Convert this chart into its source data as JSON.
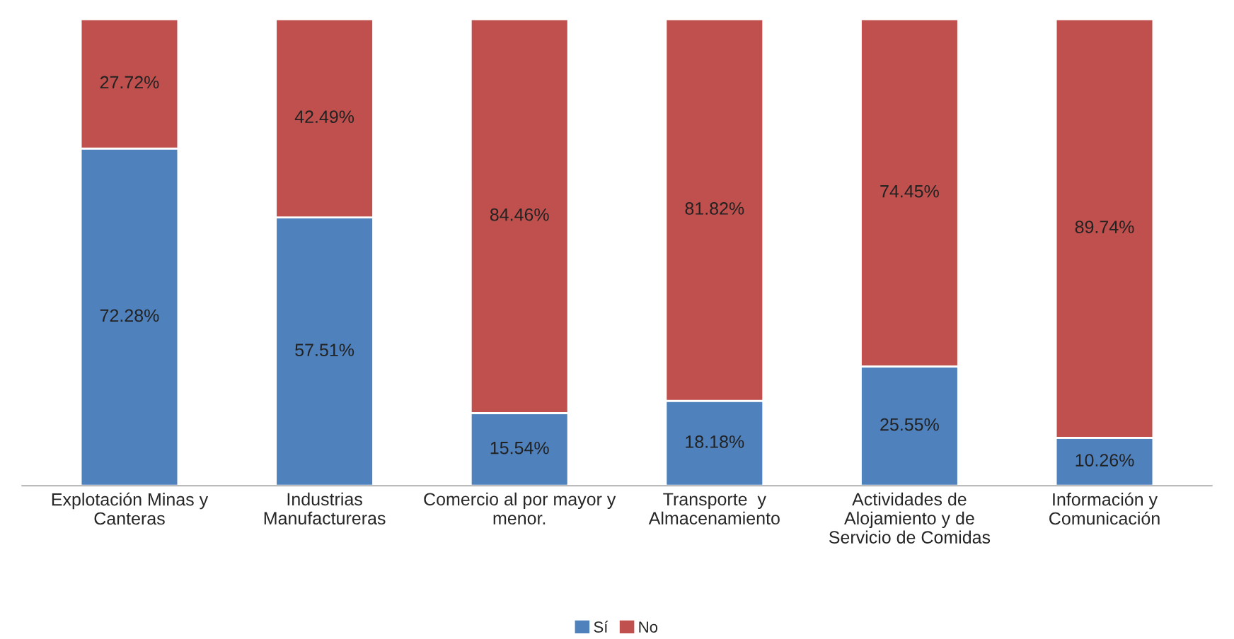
{
  "chart_data": {
    "type": "bar",
    "stacked": true,
    "categories": [
      "Explotación Minas y\nCanteras",
      "Industrias\nManufactureras",
      "Comercio al por mayor y\nmenor.",
      "Transporte  y\nAlmacenamiento",
      "Actividades de\nAlojamiento y de\nServicio de Comidas",
      "Información y\nComunicación"
    ],
    "series": [
      {
        "name": "Sí",
        "color": "#4f81bd",
        "values": [
          72.28,
          57.51,
          15.54,
          18.18,
          25.55,
          10.26
        ],
        "value_labels": [
          "72.28%",
          "57.51%",
          "15.54%",
          "18.18%",
          "25.55%",
          "10.26%"
        ]
      },
      {
        "name": "No",
        "color": "#c0504d",
        "values": [
          27.72,
          42.49,
          84.46,
          81.82,
          74.45,
          89.74
        ],
        "value_labels": [
          "27.72%",
          "42.49%",
          "84.46%",
          "81.82%",
          "74.45%",
          "89.74%"
        ]
      }
    ],
    "ylim": [
      0,
      100
    ],
    "tick_labels": "x",
    "legend": "bottom",
    "grid": false
  }
}
